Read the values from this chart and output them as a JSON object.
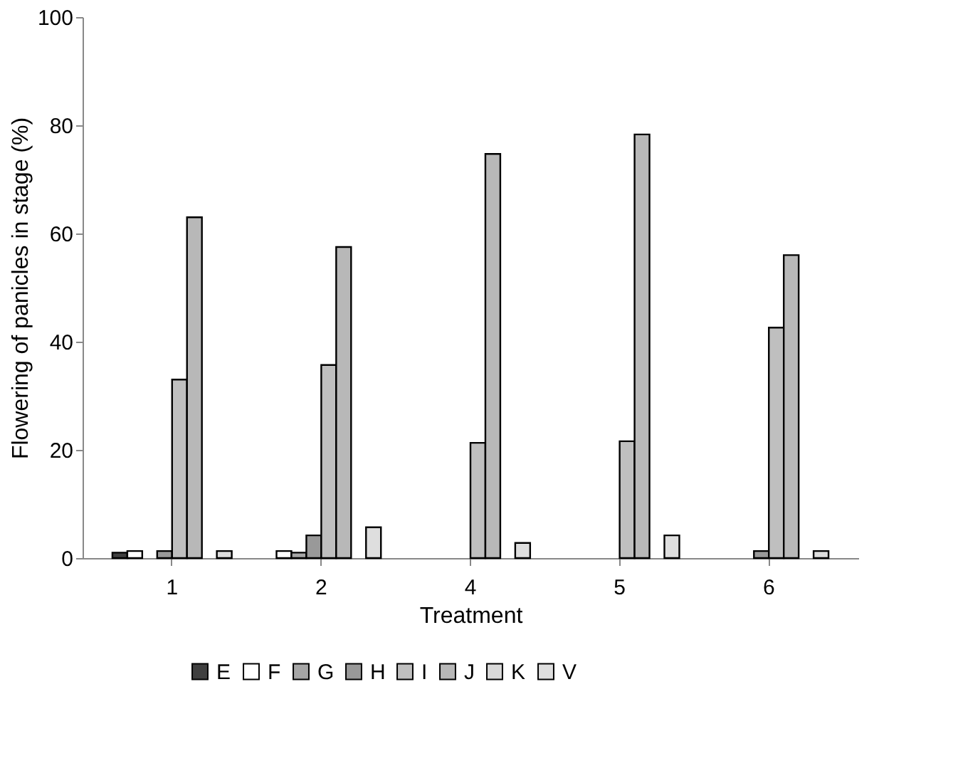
{
  "chart_data": {
    "type": "bar",
    "xlabel": "Treatment",
    "ylabel": "Flowering of panicles in stage (%)",
    "categories": [
      "1",
      "2",
      "4",
      "5",
      "6"
    ],
    "series": [
      {
        "name": "E",
        "color": "#404040",
        "values": [
          1.0,
          0,
          0,
          0,
          0
        ]
      },
      {
        "name": "F",
        "color": "#ffffff",
        "values": [
          1.3,
          1.3,
          0,
          0,
          0
        ]
      },
      {
        "name": "G",
        "color": "#a6a6a6",
        "values": [
          0,
          1.0,
          0,
          0,
          0
        ]
      },
      {
        "name": "H",
        "color": "#999999",
        "values": [
          1.3,
          4.2,
          0,
          0,
          1.3
        ]
      },
      {
        "name": "I",
        "color": "#bfbfbf",
        "values": [
          33,
          35.7,
          21.3,
          21.6,
          42.6
        ]
      },
      {
        "name": "J",
        "color": "#b8b8b8",
        "values": [
          63,
          57.5,
          74.7,
          78.3,
          56
        ]
      },
      {
        "name": "K",
        "color": "#d9d9d9",
        "values": [
          0,
          0,
          0,
          0,
          0
        ]
      },
      {
        "name": "V",
        "color": "#dedede",
        "values": [
          1.3,
          5.7,
          2.8,
          4.2,
          1.3
        ]
      }
    ],
    "ylim": [
      0,
      100
    ],
    "yticks": [
      0,
      20,
      40,
      60,
      80,
      100
    ],
    "grid": false,
    "legend": "bottom"
  }
}
